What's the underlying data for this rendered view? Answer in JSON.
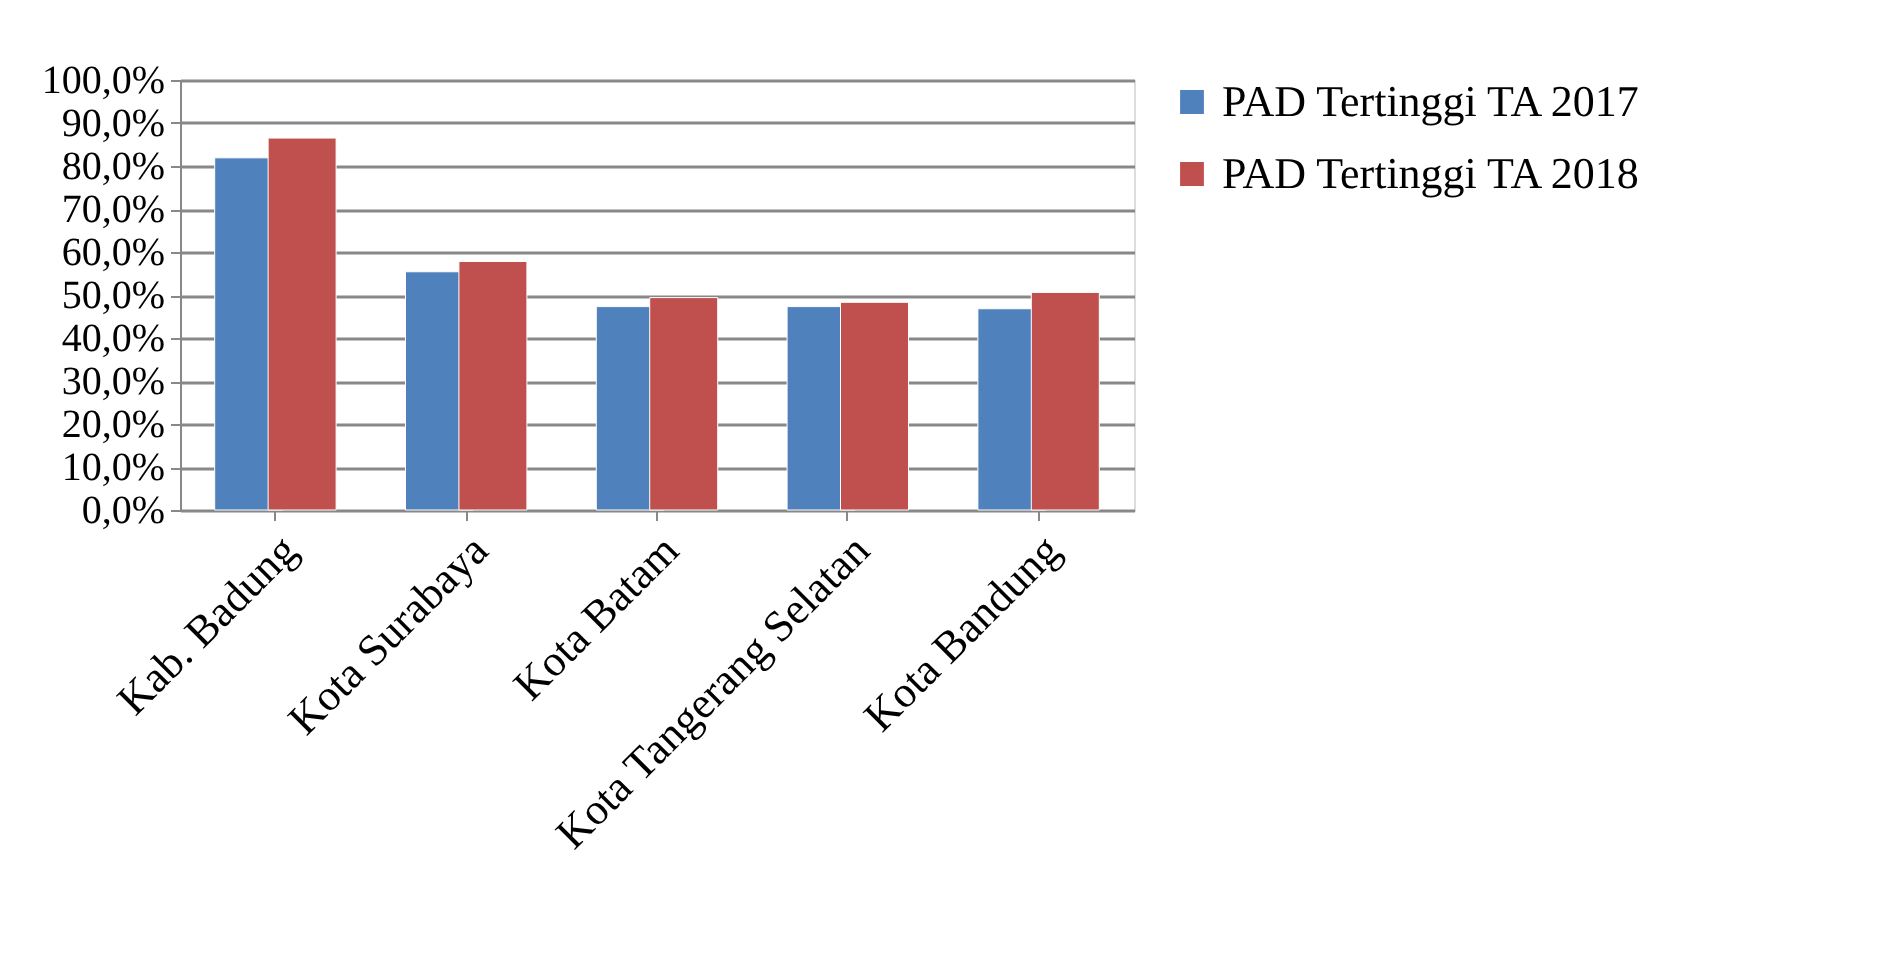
{
  "chart_data": {
    "type": "bar",
    "categories": [
      "Kab. Badung",
      "Kota Surabaya",
      "Kota Batam",
      "Kota Tangerang Selatan",
      "Kota Bandung"
    ],
    "series": [
      {
        "name": "PAD Tertinggi TA 2017",
        "color": "#4f81bd",
        "values": [
          81.9,
          55.4,
          47.3,
          47.3,
          46.8
        ]
      },
      {
        "name": "PAD Tertinggi TA 2018",
        "color": "#c0504d",
        "values": [
          86.5,
          57.8,
          49.4,
          48.3,
          50.6
        ]
      }
    ],
    "ylim": [
      0,
      100
    ],
    "yticks": [
      {
        "value": 0,
        "label": "0,0%"
      },
      {
        "value": 10,
        "label": "10,0%"
      },
      {
        "value": 20,
        "label": "20,0%"
      },
      {
        "value": 30,
        "label": "30,0%"
      },
      {
        "value": 40,
        "label": "40,0%"
      },
      {
        "value": 50,
        "label": "50,0%"
      },
      {
        "value": 60,
        "label": "60,0%"
      },
      {
        "value": 70,
        "label": "70,0%"
      },
      {
        "value": 80,
        "label": "80,0%"
      },
      {
        "value": 90,
        "label": "90,0%"
      },
      {
        "value": 100,
        "label": "100,0%"
      }
    ],
    "grid": "y",
    "legend": "right"
  }
}
